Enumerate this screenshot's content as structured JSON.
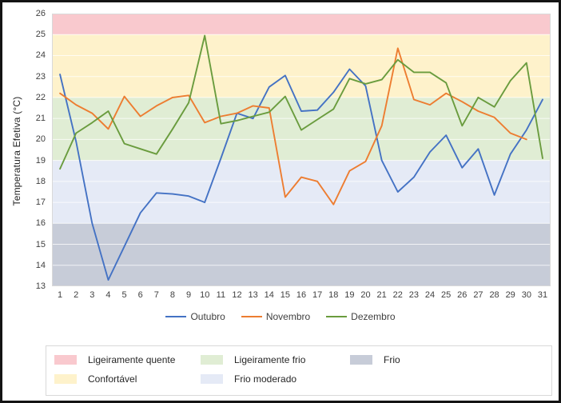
{
  "y_axis": {
    "title": "Temperatura Efetiva (°C)"
  },
  "chart_data": {
    "type": "line",
    "x_labels": [
      "1",
      "2",
      "3",
      "4",
      "5",
      "6",
      "7",
      "8",
      "9",
      "10",
      "11",
      "12",
      "13",
      "14",
      "15",
      "16",
      "17",
      "18",
      "19",
      "20",
      "21",
      "22",
      "23",
      "24",
      "25",
      "26",
      "27",
      "28",
      "29",
      "30",
      "31"
    ],
    "ylim": [
      13,
      26
    ],
    "y_ticks": [
      13,
      14,
      15,
      16,
      17,
      18,
      19,
      20,
      21,
      22,
      23,
      24,
      25,
      26
    ],
    "grid": true,
    "legend_position": "bottom",
    "series": [
      {
        "name": "Outubro",
        "color": "#4472C4",
        "values": [
          23.1,
          19.9,
          16.0,
          13.3,
          14.9,
          16.5,
          17.45,
          17.4,
          17.3,
          17.0,
          19.1,
          21.25,
          21.0,
          22.5,
          23.05,
          21.35,
          21.4,
          22.25,
          23.35,
          22.55,
          19.0,
          17.5,
          18.2,
          19.4,
          20.2,
          18.65,
          19.55,
          17.35,
          19.3,
          20.45,
          21.9
        ]
      },
      {
        "name": "Novembro",
        "color": "#ED7D31",
        "values": [
          22.2,
          21.65,
          21.25,
          20.5,
          22.05,
          21.1,
          21.6,
          22.0,
          22.1,
          20.8,
          21.1,
          21.25,
          21.6,
          21.5,
          17.25,
          18.2,
          18.0,
          16.9,
          18.5,
          18.95,
          20.65,
          24.35,
          21.9,
          21.65,
          22.2,
          21.8,
          21.35,
          21.05,
          20.3,
          20.0
        ]
      },
      {
        "name": "Dezembro",
        "color": "#6A9C3E",
        "values": [
          18.6,
          20.3,
          20.8,
          21.35,
          19.8,
          19.55,
          19.3,
          20.5,
          21.75,
          24.95,
          20.75,
          20.9,
          21.1,
          21.3,
          22.05,
          20.45,
          20.95,
          21.45,
          22.9,
          22.65,
          22.85,
          23.8,
          23.2,
          23.2,
          22.7,
          20.65,
          22.0,
          21.55,
          22.8,
          23.65,
          19.1
        ]
      }
    ],
    "bands": [
      {
        "label": "Ligeiramente quente",
        "color": "#F9C9CE",
        "from": 25,
        "to": 26
      },
      {
        "label": "Confortável",
        "color": "#FEF2CB",
        "from": 22,
        "to": 25
      },
      {
        "label": "Ligeiramente frio",
        "color": "#E0EDD4",
        "from": 19,
        "to": 22
      },
      {
        "label": "Frio moderado",
        "color": "#E5EAF6",
        "from": 16,
        "to": 19
      },
      {
        "label": "Frio",
        "color": "#C7CCD8",
        "from": 13,
        "to": 16
      }
    ]
  },
  "band_legend": {
    "items": [
      {
        "label": "Ligeiramente quente",
        "color": "#F9C9CE",
        "row": 0,
        "col": 0
      },
      {
        "label": "Ligeiramente frio",
        "color": "#E0EDD4",
        "row": 0,
        "col": 1
      },
      {
        "label": "Frio",
        "color": "#C7CCD8",
        "row": 0,
        "col": 2
      },
      {
        "label": "Confortável",
        "color": "#FEF2CB",
        "row": 1,
        "col": 0
      },
      {
        "label": "Frio moderado",
        "color": "#E5EAF6",
        "row": 1,
        "col": 1
      }
    ]
  }
}
